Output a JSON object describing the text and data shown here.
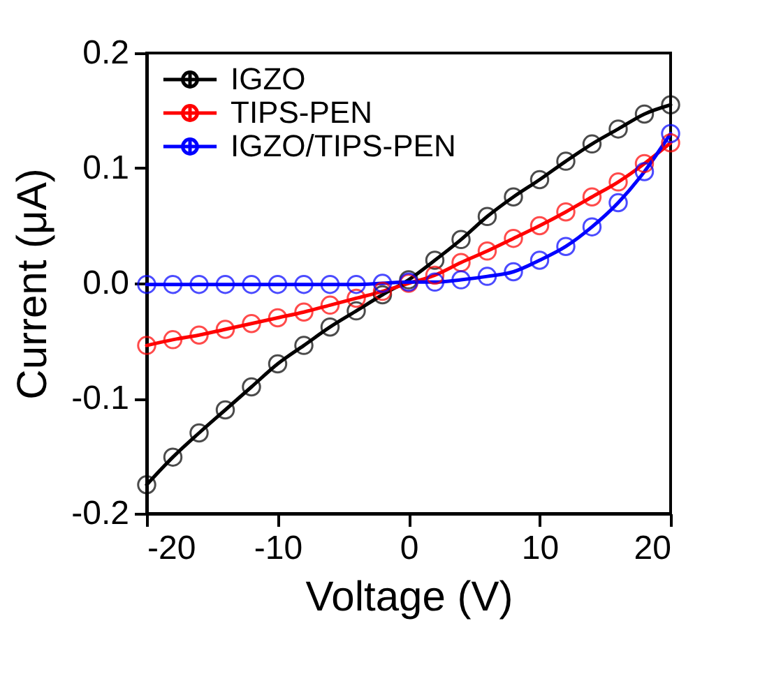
{
  "chart_data": {
    "type": "line",
    "xlabel": "Voltage (V)",
    "ylabel": "Current (μA)",
    "x": [
      -20,
      -18,
      -16,
      -14,
      -12,
      -10,
      -8,
      -6,
      -4,
      -2,
      0,
      2,
      4,
      6,
      8,
      10,
      12,
      14,
      16,
      18,
      20
    ],
    "series": [
      {
        "name": "IGZO",
        "color": "#000000",
        "values": [
          -0.175,
          -0.151,
          -0.13,
          -0.11,
          -0.09,
          -0.07,
          -0.054,
          -0.038,
          -0.024,
          -0.01,
          0.003,
          0.02,
          0.038,
          0.058,
          0.075,
          0.09,
          0.106,
          0.121,
          0.134,
          0.147,
          0.155
        ]
      },
      {
        "name": "TIPS-PEN",
        "color": "#ff0000",
        "values": [
          -0.054,
          -0.049,
          -0.045,
          -0.04,
          -0.035,
          -0.03,
          -0.025,
          -0.019,
          -0.013,
          -0.007,
          0.0,
          0.007,
          0.018,
          0.028,
          0.039,
          0.05,
          0.062,
          0.075,
          0.088,
          0.104,
          0.122
        ]
      },
      {
        "name": "IGZO/TIPS-PEN",
        "color": "#0000ff",
        "values": [
          -0.001,
          -0.001,
          -0.001,
          -0.001,
          -0.001,
          -0.001,
          -0.001,
          -0.001,
          -0.001,
          0.0,
          0.001,
          0.001,
          0.003,
          0.006,
          0.01,
          0.02,
          0.032,
          0.049,
          0.07,
          0.097,
          0.13
        ]
      }
    ],
    "xlim": [
      -20,
      20
    ],
    "xticks": [
      -20,
      -10,
      0,
      10,
      20
    ],
    "ylim": [
      -0.2,
      0.2
    ],
    "yticks": [
      {
        "value": -0.2,
        "label": "-0.2"
      },
      {
        "value": -0.1,
        "label": "-0.1"
      },
      {
        "value": 0,
        "label": "0.0"
      },
      {
        "value": 0.1,
        "label": "0.1"
      },
      {
        "value": 0.2,
        "label": "0.2"
      }
    ],
    "legend": "top left",
    "marker": "circle",
    "line_style": "solid",
    "grid": false
  }
}
